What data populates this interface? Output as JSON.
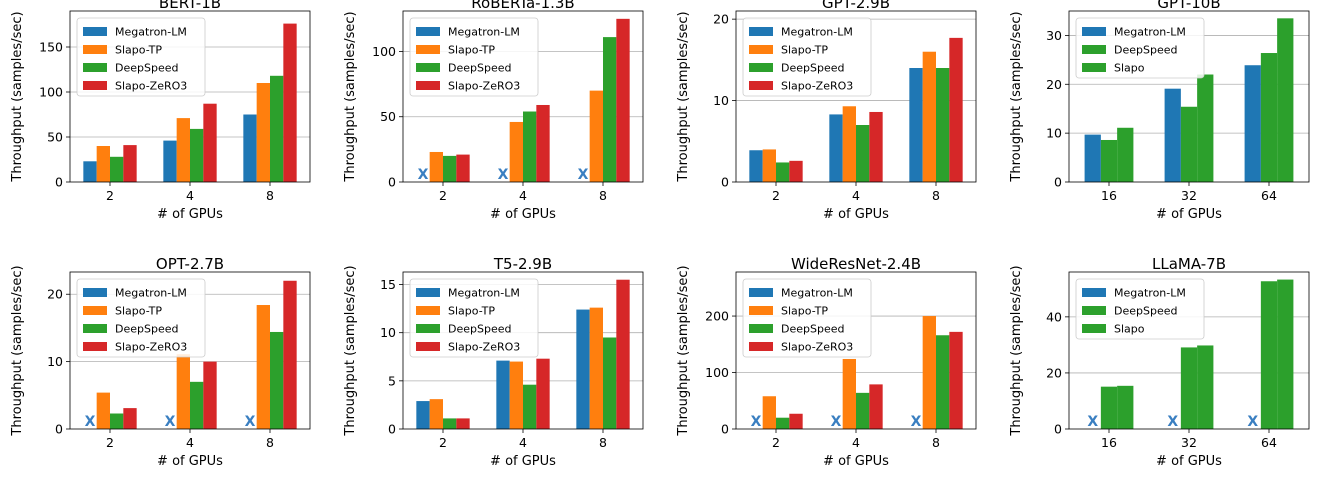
{
  "colors": {
    "Megatron-LM": "#1f77b4",
    "Slapo-TP": "#ff7f0e",
    "DeepSpeed": "#2ca02c",
    "Slapo-ZeRO3": "#d62728",
    "Slapo": "#2ca02c",
    "missing_marker": "#3a7fc1",
    "grid": "#b0b0b0"
  },
  "chart_data": [
    {
      "type": "bar",
      "title": "BERT-1B",
      "xlabel": "# of GPUs",
      "ylabel": "Throughput (samples/sec)",
      "categories": [
        "2",
        "4",
        "8"
      ],
      "ylim": [
        0,
        190
      ],
      "yticks": [
        0,
        50,
        100,
        150
      ],
      "grid": "y",
      "legend": "top-left",
      "series": [
        {
          "name": "Megatron-LM",
          "values": [
            23,
            46,
            75
          ]
        },
        {
          "name": "Slapo-TP",
          "values": [
            40,
            71,
            110
          ]
        },
        {
          "name": "DeepSpeed",
          "values": [
            28,
            59,
            118
          ]
        },
        {
          "name": "Slapo-ZeRO3",
          "values": [
            41,
            87,
            176
          ]
        }
      ]
    },
    {
      "type": "bar",
      "title": "RoBERTa-1.3B",
      "xlabel": "# of GPUs",
      "ylabel": "Throughput (samples/sec)",
      "categories": [
        "2",
        "4",
        "8"
      ],
      "ylim": [
        0,
        131
      ],
      "yticks": [
        0,
        50,
        100
      ],
      "grid": "y",
      "legend": "top-left",
      "missing_label": "X",
      "series": [
        {
          "name": "Megatron-LM",
          "values": [
            null,
            null,
            null
          ]
        },
        {
          "name": "Slapo-TP",
          "values": [
            23,
            46,
            70
          ]
        },
        {
          "name": "DeepSpeed",
          "values": [
            20,
            54,
            111
          ]
        },
        {
          "name": "Slapo-ZeRO3",
          "values": [
            21,
            59,
            125
          ]
        }
      ]
    },
    {
      "type": "bar",
      "title": "GPT-2.9B",
      "xlabel": "# of GPUs",
      "ylabel": "Throughput (samples/sec)",
      "categories": [
        "2",
        "4",
        "8"
      ],
      "ylim": [
        0,
        21
      ],
      "yticks": [
        0,
        10,
        20
      ],
      "grid": "y",
      "legend": "top-left",
      "series": [
        {
          "name": "Megatron-LM",
          "values": [
            3.9,
            8.3,
            14.0
          ]
        },
        {
          "name": "Slapo-TP",
          "values": [
            4.0,
            9.3,
            16.0
          ]
        },
        {
          "name": "DeepSpeed",
          "values": [
            2.4,
            7.0,
            14.0
          ]
        },
        {
          "name": "Slapo-ZeRO3",
          "values": [
            2.6,
            8.6,
            17.7
          ]
        }
      ]
    },
    {
      "type": "bar",
      "title": "GPT-10B",
      "xlabel": "# of GPUs",
      "ylabel": "Throughput (samples/sec)",
      "categories": [
        "16",
        "32",
        "64"
      ],
      "ylim": [
        0,
        35
      ],
      "yticks": [
        0,
        10,
        20,
        30
      ],
      "grid": "y",
      "legend": "top-left",
      "series": [
        {
          "name": "Megatron-LM",
          "values": [
            9.7,
            19.1,
            23.9
          ]
        },
        {
          "name": "DeepSpeed",
          "values": [
            8.6,
            15.4,
            26.4
          ]
        },
        {
          "name": "Slapo",
          "values": [
            11.1,
            22.0,
            33.5
          ]
        }
      ]
    },
    {
      "type": "bar",
      "title": "OPT-2.7B",
      "xlabel": "# of GPUs",
      "ylabel": "Throughput (samples/sec)",
      "categories": [
        "2",
        "4",
        "8"
      ],
      "ylim": [
        0,
        23.3
      ],
      "yticks": [
        0,
        10,
        20
      ],
      "grid": "y",
      "legend": "top-left",
      "missing_label": "X",
      "series": [
        {
          "name": "Megatron-LM",
          "values": [
            null,
            null,
            null
          ]
        },
        {
          "name": "Slapo-TP",
          "values": [
            5.4,
            11.1,
            18.4
          ]
        },
        {
          "name": "DeepSpeed",
          "values": [
            2.3,
            7.0,
            14.4
          ]
        },
        {
          "name": "Slapo-ZeRO3",
          "values": [
            3.1,
            10.0,
            22.0
          ]
        }
      ]
    },
    {
      "type": "bar",
      "title": "T5-2.9B",
      "xlabel": "# of GPUs",
      "ylabel": "Throughput (samples/sec)",
      "categories": [
        "2",
        "4",
        "8"
      ],
      "ylim": [
        0,
        16.3
      ],
      "yticks": [
        0,
        5,
        10,
        15
      ],
      "grid": "y",
      "legend": "top-left",
      "series": [
        {
          "name": "Megatron-LM",
          "values": [
            2.9,
            7.1,
            12.4
          ]
        },
        {
          "name": "Slapo-TP",
          "values": [
            3.1,
            7.0,
            12.6
          ]
        },
        {
          "name": "DeepSpeed",
          "values": [
            1.1,
            4.6,
            9.5
          ]
        },
        {
          "name": "Slapo-ZeRO3",
          "values": [
            1.1,
            7.3,
            15.5
          ]
        }
      ]
    },
    {
      "type": "bar",
      "title": "WideResNet-2.4B",
      "xlabel": "# of GPUs",
      "ylabel": "Throughput (samples/sec)",
      "categories": [
        "2",
        "4",
        "8"
      ],
      "ylim": [
        0,
        278
      ],
      "yticks": [
        0,
        100,
        200
      ],
      "grid": "y",
      "legend": "top-left",
      "missing_label": "X",
      "series": [
        {
          "name": "Megatron-LM",
          "values": [
            null,
            null,
            null
          ]
        },
        {
          "name": "Slapo-TP",
          "values": [
            58,
            124,
            200
          ]
        },
        {
          "name": "DeepSpeed",
          "values": [
            20,
            64,
            166
          ]
        },
        {
          "name": "Slapo-ZeRO3",
          "values": [
            27,
            79,
            172
          ]
        }
      ]
    },
    {
      "type": "bar",
      "title": "LLaMA-7B",
      "xlabel": "# of GPUs",
      "ylabel": "Throughput (samples/sec)",
      "categories": [
        "16",
        "32",
        "64"
      ],
      "ylim": [
        0,
        56
      ],
      "yticks": [
        0,
        20,
        40
      ],
      "grid": "y",
      "legend": "top-left",
      "missing_label": "X",
      "series": [
        {
          "name": "Megatron-LM",
          "values": [
            null,
            null,
            null
          ]
        },
        {
          "name": "DeepSpeed",
          "values": [
            15.1,
            29.1,
            52.7
          ]
        },
        {
          "name": "Slapo",
          "values": [
            15.4,
            29.8,
            53.3
          ]
        }
      ]
    }
  ]
}
